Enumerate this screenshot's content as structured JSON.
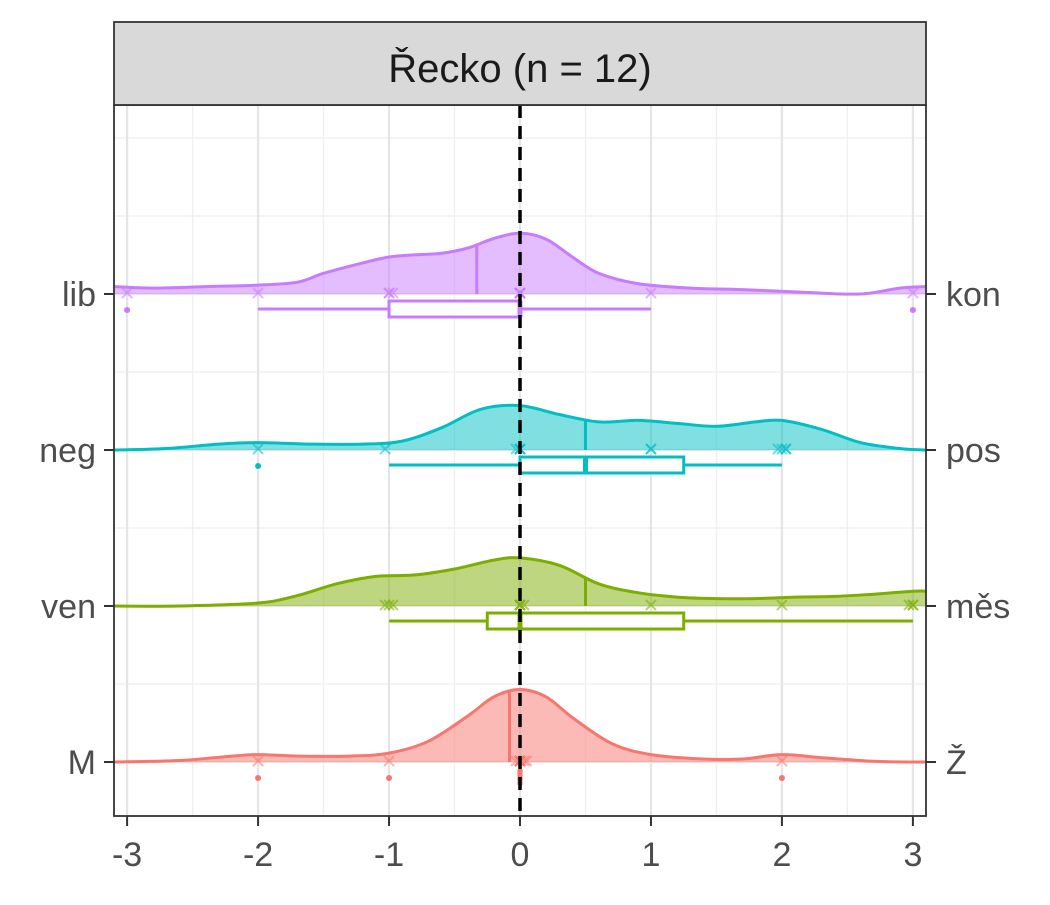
{
  "chart_data": {
    "type": "ridgeline-density-boxplot",
    "facet_title": "Řecko (n = 12)",
    "xlabel": "",
    "ylabel": "",
    "xlim": [
      -3.1,
      3.1
    ],
    "x_ticks": [
      -3,
      -2,
      -1,
      0,
      1,
      2,
      3
    ],
    "x_tick_labels": [
      "-3",
      "-2",
      "-1",
      "0",
      "1",
      "2",
      "3"
    ],
    "grid": true,
    "reference_line": {
      "x": 0,
      "style": "dashed"
    },
    "colors": {
      "lib_kon": "#C77CFF",
      "neg_pos": "#00BFC4",
      "ven_mes": "#7CAE00",
      "m_z": "#F8766D"
    },
    "rows": [
      {
        "left_label": "lib",
        "right_label": "kon",
        "color": "#C77CFF",
        "mean": -0.33,
        "density": [
          [
            -3.1,
            0.1
          ],
          [
            -2.8,
            0.08
          ],
          [
            -2.4,
            0.1
          ],
          [
            -2.0,
            0.12
          ],
          [
            -1.7,
            0.16
          ],
          [
            -1.5,
            0.28
          ],
          [
            -1.2,
            0.42
          ],
          [
            -1.0,
            0.5
          ],
          [
            -0.8,
            0.53
          ],
          [
            -0.6,
            0.55
          ],
          [
            -0.4,
            0.62
          ],
          [
            -0.2,
            0.75
          ],
          [
            0.0,
            0.82
          ],
          [
            0.2,
            0.74
          ],
          [
            0.4,
            0.5
          ],
          [
            0.6,
            0.28
          ],
          [
            0.9,
            0.14
          ],
          [
            1.3,
            0.08
          ],
          [
            1.7,
            0.06
          ],
          [
            2.2,
            0.02
          ],
          [
            2.6,
            0.0
          ],
          [
            2.9,
            0.08
          ],
          [
            3.1,
            0.1
          ]
        ],
        "box": {
          "whisker_low": -2,
          "q1": -1,
          "median": 0,
          "q3": 0,
          "whisker_high": 1
        },
        "outliers": [
          -3,
          3
        ],
        "points": [
          -3,
          -2,
          -1,
          -1,
          -0.97,
          0,
          0,
          0,
          0,
          0,
          1,
          3
        ]
      },
      {
        "left_label": "neg",
        "right_label": "pos",
        "color": "#00BFC4",
        "mean": 0.5,
        "density": [
          [
            -3.1,
            0.0
          ],
          [
            -2.7,
            0.02
          ],
          [
            -2.3,
            0.08
          ],
          [
            -2.0,
            0.1
          ],
          [
            -1.6,
            0.08
          ],
          [
            -1.2,
            0.08
          ],
          [
            -0.9,
            0.12
          ],
          [
            -0.6,
            0.3
          ],
          [
            -0.3,
            0.55
          ],
          [
            0.0,
            0.6
          ],
          [
            0.3,
            0.48
          ],
          [
            0.6,
            0.38
          ],
          [
            0.9,
            0.4
          ],
          [
            1.2,
            0.36
          ],
          [
            1.5,
            0.32
          ],
          [
            1.8,
            0.38
          ],
          [
            2.0,
            0.4
          ],
          [
            2.3,
            0.28
          ],
          [
            2.6,
            0.1
          ],
          [
            2.9,
            0.02
          ],
          [
            3.1,
            0.0
          ]
        ],
        "box": {
          "whisker_low": -1,
          "q1": 0,
          "median": 0.5,
          "q3": 1.25,
          "whisker_high": 2
        },
        "outliers": [
          -2
        ],
        "points": [
          -2,
          -1.03,
          -0.03,
          0,
          0,
          0,
          1,
          1,
          1.97,
          2,
          2.03,
          2.03
        ]
      },
      {
        "left_label": "ven",
        "right_label": "měs",
        "color": "#7CAE00",
        "mean": 0.5,
        "density": [
          [
            -3.1,
            0.0
          ],
          [
            -2.6,
            0.0
          ],
          [
            -2.0,
            0.04
          ],
          [
            -1.7,
            0.14
          ],
          [
            -1.4,
            0.3
          ],
          [
            -1.1,
            0.4
          ],
          [
            -0.8,
            0.42
          ],
          [
            -0.5,
            0.5
          ],
          [
            -0.2,
            0.62
          ],
          [
            0.0,
            0.65
          ],
          [
            0.3,
            0.55
          ],
          [
            0.6,
            0.3
          ],
          [
            0.9,
            0.18
          ],
          [
            1.2,
            0.12
          ],
          [
            1.5,
            0.1
          ],
          [
            1.8,
            0.1
          ],
          [
            2.1,
            0.12
          ],
          [
            2.4,
            0.13
          ],
          [
            2.7,
            0.16
          ],
          [
            3.0,
            0.2
          ],
          [
            3.1,
            0.2
          ]
        ],
        "box": {
          "whisker_low": -1,
          "q1": -0.25,
          "median": 0,
          "q3": 1.25,
          "whisker_high": 3
        },
        "outliers": [],
        "points": [
          -1.03,
          -1,
          -0.97,
          0,
          0,
          0.03,
          0,
          1,
          2,
          3,
          3,
          2.97
        ]
      },
      {
        "left_label": "M",
        "right_label": "Ž",
        "color": "#F8766D",
        "mean": -0.08,
        "density": [
          [
            -3.1,
            0.0
          ],
          [
            -2.6,
            0.02
          ],
          [
            -2.2,
            0.08
          ],
          [
            -2.0,
            0.1
          ],
          [
            -1.7,
            0.08
          ],
          [
            -1.3,
            0.08
          ],
          [
            -1.0,
            0.12
          ],
          [
            -0.7,
            0.28
          ],
          [
            -0.4,
            0.62
          ],
          [
            -0.2,
            0.88
          ],
          [
            0.0,
            0.98
          ],
          [
            0.2,
            0.88
          ],
          [
            0.4,
            0.6
          ],
          [
            0.7,
            0.25
          ],
          [
            1.0,
            0.1
          ],
          [
            1.4,
            0.04
          ],
          [
            1.7,
            0.04
          ],
          [
            2.0,
            0.1
          ],
          [
            2.3,
            0.06
          ],
          [
            2.7,
            0.01
          ],
          [
            3.1,
            0.0
          ]
        ],
        "box": {
          "whisker_low": 0,
          "q1": 0,
          "median": 0,
          "q3": 0,
          "whisker_high": 0
        },
        "outliers": [
          -2,
          -1,
          2
        ],
        "points": [
          -2,
          -1,
          -0.03,
          0,
          0,
          0,
          0,
          0,
          0.03,
          0.05,
          2,
          0
        ]
      }
    ]
  }
}
